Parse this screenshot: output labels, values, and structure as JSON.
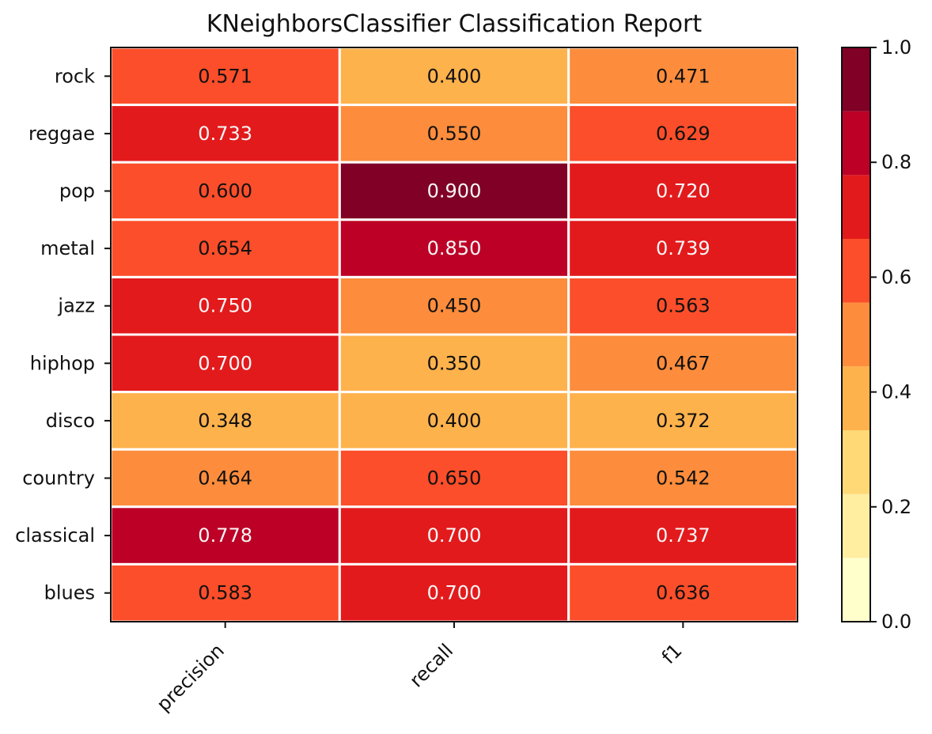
{
  "chart_data": {
    "type": "heatmap",
    "title": "KNeighborsClassifier Classification Report",
    "columns": [
      "precision",
      "recall",
      "f1"
    ],
    "rows": [
      "rock",
      "reggae",
      "pop",
      "metal",
      "jazz",
      "hiphop",
      "disco",
      "country",
      "classical",
      "blues"
    ],
    "values": [
      [
        0.571,
        0.4,
        0.471
      ],
      [
        0.733,
        0.55,
        0.629
      ],
      [
        0.6,
        0.9,
        0.72
      ],
      [
        0.654,
        0.85,
        0.739
      ],
      [
        0.75,
        0.45,
        0.563
      ],
      [
        0.7,
        0.35,
        0.467
      ],
      [
        0.348,
        0.4,
        0.372
      ],
      [
        0.464,
        0.65,
        0.542
      ],
      [
        0.778,
        0.7,
        0.737
      ],
      [
        0.583,
        0.7,
        0.636
      ]
    ],
    "value_labels": [
      [
        "0.571",
        "0.400",
        "0.471"
      ],
      [
        "0.733",
        "0.550",
        "0.629"
      ],
      [
        "0.600",
        "0.900",
        "0.720"
      ],
      [
        "0.654",
        "0.850",
        "0.739"
      ],
      [
        "0.750",
        "0.450",
        "0.563"
      ],
      [
        "0.700",
        "0.350",
        "0.467"
      ],
      [
        "0.348",
        "0.400",
        "0.372"
      ],
      [
        "0.464",
        "0.650",
        "0.542"
      ],
      [
        "0.778",
        "0.700",
        "0.737"
      ],
      [
        "0.583",
        "0.700",
        "0.636"
      ]
    ],
    "colorbar": {
      "range": [
        0.0,
        1.0
      ],
      "ticks": [
        0.0,
        0.2,
        0.4,
        0.6,
        0.8,
        1.0
      ],
      "tick_labels": [
        "0.0",
        "0.2",
        "0.4",
        "0.6",
        "0.8",
        "1.0"
      ],
      "colors": [
        "#ffffcc",
        "#ffeda0",
        "#fed976",
        "#feb24c",
        "#fd8d3c",
        "#fc4e2a",
        "#e31a1c",
        "#bd0026",
        "#800026"
      ]
    },
    "colors": {
      "cell_border": "#ffffff",
      "text_dark": "#111111",
      "text_light": "#f7f7f7",
      "axis": "#111111"
    }
  }
}
